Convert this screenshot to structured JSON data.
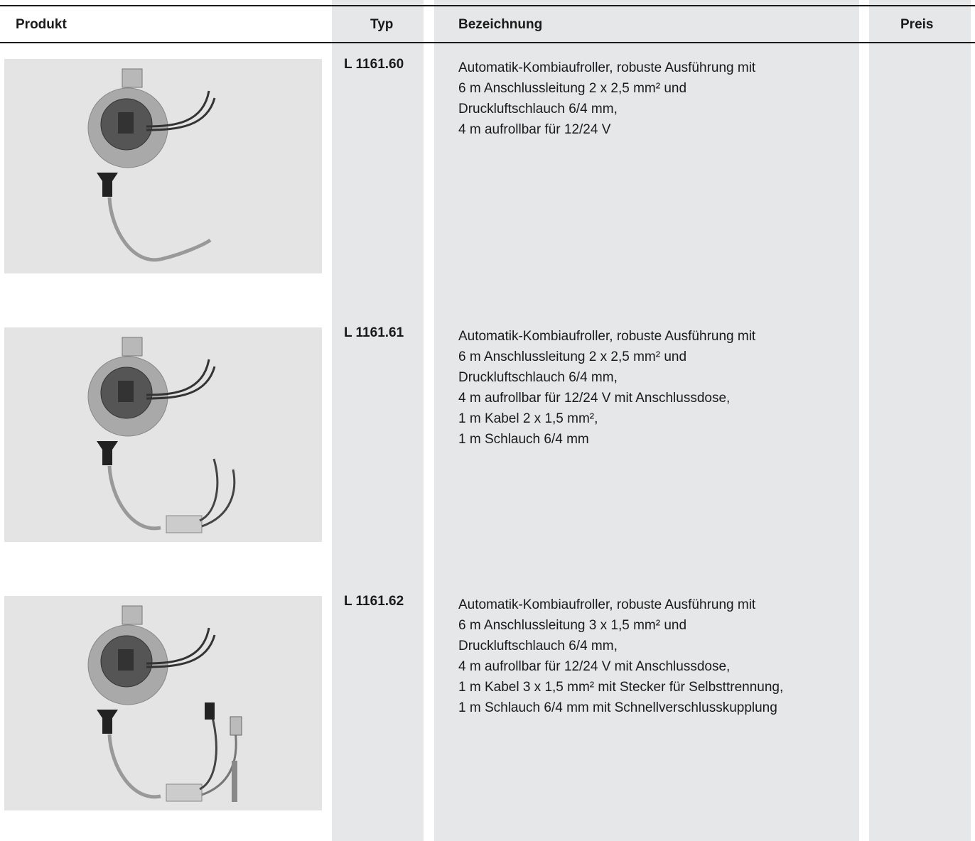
{
  "header": {
    "produkt": "Produkt",
    "typ": "Typ",
    "bezeichnung": "Bezeichnung",
    "preis": "Preis"
  },
  "rows": [
    {
      "typ": "L 1161.60",
      "description": [
        "Automatik-Kombiaufroller, robuste Ausführung mit",
        "6 m Anschlussleitung 2 x 2,5 mm² und",
        "Druckluftschlauch 6/4 mm,",
        "4 m aufrollbar für 12/24 V"
      ]
    },
    {
      "typ": "L 1161.61",
      "description": [
        "Automatik-Kombiaufroller, robuste Ausführung mit",
        "6 m Anschlussleitung 2 x 2,5 mm² und",
        "Druckluftschlauch 6/4 mm,",
        "4 m aufrollbar für 12/24 V mit Anschlussdose,",
        "1 m Kabel 2 x 1,5 mm²,",
        "1 m Schlauch 6/4 mm"
      ]
    },
    {
      "typ": "L 1161.62",
      "description": [
        "Automatik-Kombiaufroller, robuste Ausführung mit",
        "6 m Anschlussleitung 3 x 1,5 mm² und",
        "Druckluftschlauch 6/4 mm,",
        "4 m aufrollbar für 12/24 V mit Anschlussdose,",
        "1 m Kabel 3 x 1,5 mm² mit Stecker für Selbsttrennung,",
        "1 m Schlauch 6/4 mm mit Schnellverschlusskupplung"
      ]
    }
  ]
}
